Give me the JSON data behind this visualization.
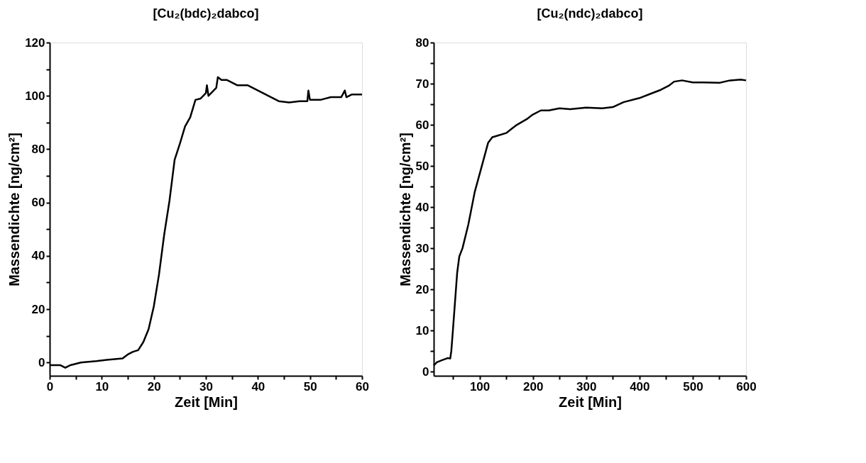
{
  "chart_data": [
    {
      "type": "line",
      "title": "[Cu₂(bdc)₂dabco]",
      "xlabel": "Zeit [Min]",
      "ylabel": "Massendichte [ng/cm²]",
      "x": [
        0,
        2,
        3,
        4,
        6,
        9,
        11,
        14,
        15,
        16,
        17,
        18,
        19,
        20,
        21,
        22,
        23,
        24,
        25,
        26,
        27,
        28,
        29,
        30,
        30.2,
        30.5,
        31,
        32,
        32.3,
        33,
        34,
        35,
        36,
        38,
        39,
        40,
        42,
        43,
        44,
        46,
        48,
        49.5,
        49.7,
        50,
        52,
        54,
        56,
        56.7,
        57,
        58,
        60
      ],
      "series": [
        {
          "color": "#000000",
          "values": [
            -1,
            -1,
            -2,
            -1,
            0,
            0.5,
            1,
            1.5,
            3,
            4,
            4.6,
            7.7,
            12.5,
            21,
            33,
            48,
            60.5,
            76,
            82,
            88.5,
            92,
            98.5,
            99,
            101,
            104,
            100,
            101,
            103,
            107,
            106,
            106,
            105,
            104,
            104,
            103,
            102,
            100,
            99,
            98,
            97.5,
            98,
            98,
            102,
            98.5,
            98.5,
            99.5,
            99.5,
            102,
            99.5,
            100.5,
            100.5
          ]
        }
      ],
      "xlim": [
        0,
        60
      ],
      "ylim": [
        -5,
        120
      ],
      "xticks": [
        0,
        {
          "value": 5,
          "label": null
        },
        10,
        {
          "value": 15,
          "label": null
        },
        20,
        {
          "value": 25,
          "label": null
        },
        30,
        {
          "value": 35,
          "label": null
        },
        40,
        {
          "value": 45,
          "label": null
        },
        50,
        {
          "value": 55,
          "label": null
        },
        60
      ],
      "yticks": [
        0,
        {
          "value": 10,
          "label": null
        },
        20,
        {
          "value": 30,
          "label": null
        },
        40,
        {
          "value": 50,
          "label": null
        },
        60,
        {
          "value": 70,
          "label": null
        },
        80,
        {
          "value": 90,
          "label": null
        },
        100,
        {
          "value": 110,
          "label": null
        },
        120
      ]
    },
    {
      "type": "line",
      "title": "[Cu₂(ndc)₂dabco]",
      "xlabel": "Zeit [Min]",
      "ylabel": "Massendichte [ng/cm²]",
      "x": [
        14,
        20,
        30,
        40,
        45,
        47,
        50,
        54,
        58,
        62,
        68,
        79,
        91,
        103,
        116,
        124,
        132,
        150,
        160,
        170,
        190,
        200,
        215,
        230,
        250,
        270,
        300,
        330,
        350,
        370,
        400,
        420,
        440,
        455,
        465,
        480,
        500,
        520,
        550,
        570,
        590,
        600
      ],
      "series": [
        {
          "color": "#000000",
          "values": [
            1.5,
            2.3,
            2.8,
            3.3,
            3.2,
            5,
            10,
            17,
            24,
            28,
            30,
            35.8,
            43.7,
            49.4,
            55.6,
            57,
            57.3,
            58,
            59,
            60,
            61.5,
            62.5,
            63.5,
            63.5,
            64,
            63.8,
            64.2,
            64,
            64.3,
            65.5,
            66.5,
            67.5,
            68.5,
            69.5,
            70.5,
            70.8,
            70.3,
            70.3,
            70.2,
            70.8,
            71,
            70.8
          ]
        }
      ],
      "xlim": [
        14,
        600
      ],
      "ylim": [
        -1,
        80
      ],
      "xticks": [
        {
          "value": 50,
          "label": null
        },
        100,
        {
          "value": 150,
          "label": null
        },
        200,
        {
          "value": 250,
          "label": null
        },
        300,
        {
          "value": 350,
          "label": null
        },
        400,
        {
          "value": 450,
          "label": null
        },
        500,
        {
          "value": 550,
          "label": null
        },
        600
      ],
      "yticks": [
        0,
        {
          "value": 5,
          "label": null
        },
        10,
        {
          "value": 15,
          "label": null
        },
        20,
        {
          "value": 25,
          "label": null
        },
        30,
        {
          "value": 35,
          "label": null
        },
        40,
        {
          "value": 45,
          "label": null
        },
        50,
        {
          "value": 55,
          "label": null
        },
        60,
        {
          "value": 65,
          "label": null
        },
        70,
        {
          "value": 75,
          "label": null
        },
        80
      ]
    }
  ]
}
